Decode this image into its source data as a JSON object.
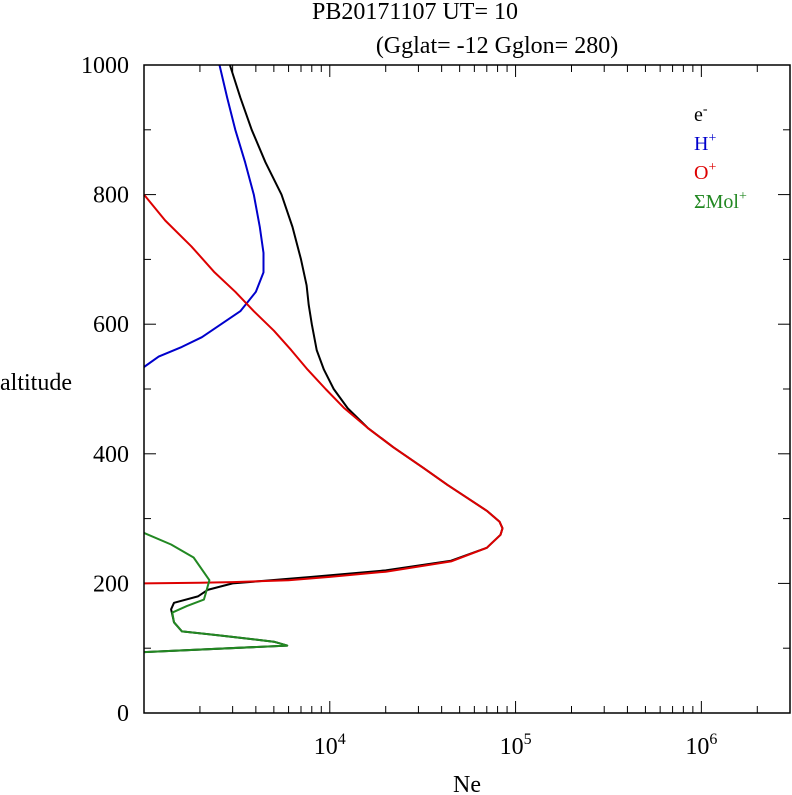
{
  "chart_data": {
    "type": "line",
    "title_line1": "PB20171107   UT=  10",
    "title_line2": "(Gglat= -12   Gglon=  280)",
    "xlabel": "Ne",
    "ylabel": "altitude",
    "x_scale": "log",
    "xlim": [
      1000,
      3000000
    ],
    "ylim": [
      0,
      1000
    ],
    "y_ticks": [
      "0",
      "200",
      "400",
      "600",
      "800",
      "1000"
    ],
    "x_ticks": [
      {
        "base": "10",
        "exp": "4",
        "value": 10000
      },
      {
        "base": "10",
        "exp": "5",
        "value": 100000
      },
      {
        "base": "10",
        "exp": "6",
        "value": 1000000
      }
    ],
    "legend_position": "top-right",
    "legend": [
      {
        "base": "e",
        "sup": "-",
        "color": "#000000"
      },
      {
        "base": "H",
        "sup": "+",
        "color": "#0000cc"
      },
      {
        "base": "O",
        "sup": "+",
        "color": "#dd0000"
      },
      {
        "base": "ΣMol",
        "sup": "+",
        "color": "#228822"
      }
    ],
    "series": [
      {
        "key": "e",
        "color": "#000000",
        "points": [
          [
            1000,
            94
          ],
          [
            5900,
            104
          ],
          [
            5000,
            110
          ],
          [
            2500,
            120
          ],
          [
            1600,
            126
          ],
          [
            1450,
            140
          ],
          [
            1400,
            160
          ],
          [
            1450,
            170
          ],
          [
            1950,
            180
          ],
          [
            2200,
            190
          ],
          [
            3000,
            200
          ],
          [
            8000,
            210
          ],
          [
            20000,
            220
          ],
          [
            45000,
            235
          ],
          [
            70000,
            255
          ],
          [
            83000,
            275
          ],
          [
            85000,
            285
          ],
          [
            82000,
            295
          ],
          [
            70000,
            312
          ],
          [
            55000,
            332
          ],
          [
            43000,
            352
          ],
          [
            32000,
            378
          ],
          [
            22000,
            410
          ],
          [
            16000,
            440
          ],
          [
            12500,
            470
          ],
          [
            10500,
            500
          ],
          [
            9300,
            530
          ],
          [
            8500,
            560
          ],
          [
            8000,
            600
          ],
          [
            7700,
            630
          ],
          [
            7500,
            660
          ],
          [
            7000,
            700
          ],
          [
            6300,
            750
          ],
          [
            5500,
            800
          ],
          [
            4500,
            850
          ],
          [
            3800,
            900
          ],
          [
            3300,
            950
          ],
          [
            2900,
            1000
          ]
        ]
      },
      {
        "key": "H",
        "color": "#0000cc",
        "points": [
          [
            1000,
            534
          ],
          [
            1200,
            550
          ],
          [
            1600,
            565
          ],
          [
            2050,
            580
          ],
          [
            2600,
            600
          ],
          [
            3300,
            620
          ],
          [
            4000,
            650
          ],
          [
            4400,
            680
          ],
          [
            4400,
            710
          ],
          [
            4200,
            750
          ],
          [
            3900,
            800
          ],
          [
            3500,
            850
          ],
          [
            3100,
            900
          ],
          [
            2800,
            950
          ],
          [
            2550,
            1000
          ]
        ]
      },
      {
        "key": "O",
        "color": "#dd0000",
        "points": [
          [
            1000,
            200
          ],
          [
            2000,
            201
          ],
          [
            3000,
            202
          ],
          [
            6000,
            205
          ],
          [
            10000,
            210
          ],
          [
            20000,
            218
          ],
          [
            45000,
            234
          ],
          [
            70000,
            255
          ],
          [
            83000,
            275
          ],
          [
            85000,
            285
          ],
          [
            82000,
            295
          ],
          [
            70000,
            312
          ],
          [
            55000,
            332
          ],
          [
            43000,
            352
          ],
          [
            32000,
            378
          ],
          [
            22000,
            410
          ],
          [
            16000,
            440
          ],
          [
            12000,
            470
          ],
          [
            9500,
            500
          ],
          [
            7600,
            530
          ],
          [
            6200,
            560
          ],
          [
            5000,
            590
          ],
          [
            3900,
            620
          ],
          [
            3100,
            650
          ],
          [
            2400,
            680
          ],
          [
            1800,
            720
          ],
          [
            1300,
            760
          ],
          [
            1000,
            800
          ]
        ]
      },
      {
        "key": "Mol",
        "color": "#228822",
        "points": [
          [
            1000,
            278
          ],
          [
            1400,
            260
          ],
          [
            1850,
            240
          ],
          [
            2250,
            205
          ],
          [
            2150,
            185
          ],
          [
            2100,
            175
          ],
          [
            1700,
            165
          ],
          [
            1420,
            155
          ],
          [
            1450,
            140
          ],
          [
            1600,
            126
          ],
          [
            2500,
            120
          ],
          [
            5000,
            110
          ],
          [
            5900,
            104
          ],
          [
            1000,
            94
          ]
        ]
      }
    ]
  }
}
